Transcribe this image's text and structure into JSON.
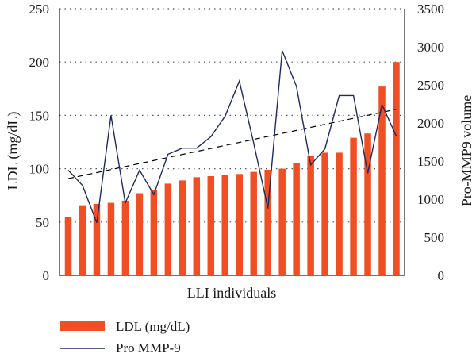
{
  "chart_data": {
    "type": "bar",
    "xlabel": "LLI individuals",
    "ylabel_left": "LDL (mg/dL)",
    "ylabel_right": "Pro-MMP9 volume",
    "ylim_left": [
      0,
      250
    ],
    "ylim_right": [
      0,
      3500
    ],
    "yticks_left": [
      "0",
      "50",
      "100",
      "150",
      "200",
      "250"
    ],
    "yticks_right": [
      "0",
      "500",
      "1000",
      "1500",
      "2000",
      "2500",
      "3000",
      "3500"
    ],
    "grid": "horizontal dotted",
    "legend_position": "bottom-left",
    "colors": {
      "bars": "#f04e23",
      "line": "#1f2a5e",
      "trend": "#000000"
    },
    "series": [
      {
        "name": "LDL (mg/dL)",
        "type": "bar",
        "axis": "left",
        "values": [
          55,
          65,
          67,
          68,
          70,
          77,
          80,
          86,
          89,
          92,
          93,
          94,
          95,
          97,
          99,
          100,
          105,
          112,
          115,
          115,
          129,
          133,
          177,
          200
        ]
      },
      {
        "name": "Pro MMP-9",
        "type": "line",
        "axis": "right",
        "values": [
          1380,
          1180,
          690,
          2100,
          950,
          1380,
          1060,
          1590,
          1670,
          1670,
          1820,
          2090,
          2550,
          1740,
          880,
          2950,
          2480,
          1450,
          1660,
          2360,
          2360,
          1340,
          2240,
          1830
        ]
      }
    ],
    "trendline": {
      "style": "dashed",
      "axis": "right",
      "start": 1270,
      "end": 2180
    }
  }
}
